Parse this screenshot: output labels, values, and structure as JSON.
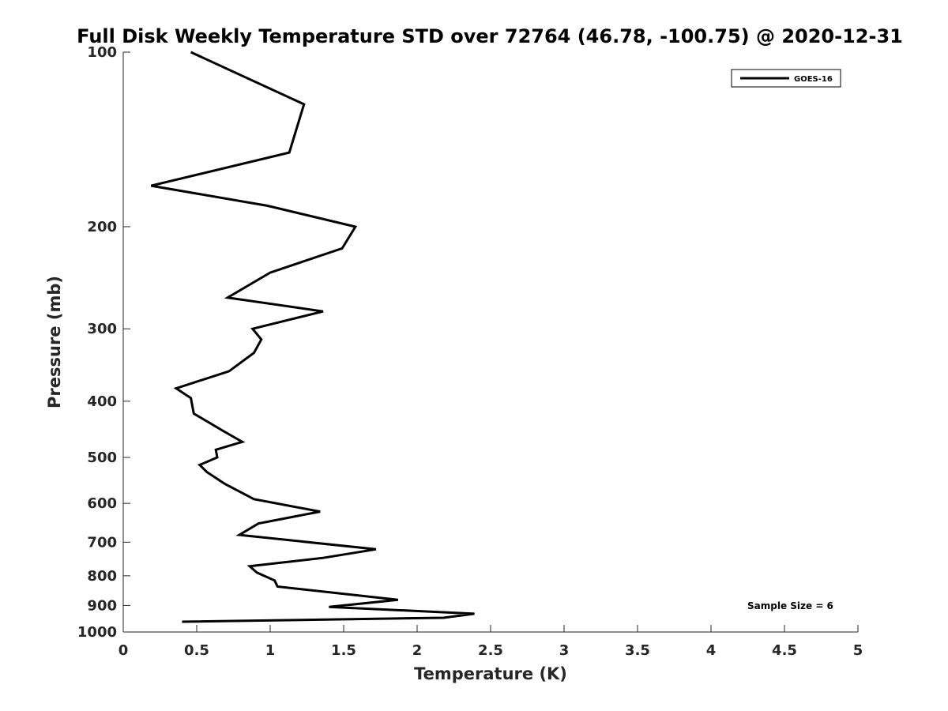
{
  "chart_data": {
    "type": "line",
    "title": "Full Disk Weekly Temperature STD over 72764 (46.78, -100.75) @ 2020-12-31",
    "xlabel": "Temperature (K)",
    "ylabel": "Pressure (mb)",
    "xlim": [
      0,
      5
    ],
    "ylim": [
      100,
      1000
    ],
    "y_scale": "log",
    "y_reversed": true,
    "x_ticks": [
      "0",
      "0.5",
      "1",
      "1.5",
      "2",
      "2.5",
      "3",
      "3.5",
      "4",
      "4.5",
      "5"
    ],
    "y_ticks": [
      "100",
      "200",
      "300",
      "400",
      "500",
      "600",
      "700",
      "800",
      "900",
      "1000"
    ],
    "grid": false,
    "legend_position": "top-right",
    "series": [
      {
        "name": "GOES-16",
        "color": "#000000",
        "x": [
          0.46,
          1.23,
          1.13,
          0.19,
          0.98,
          1.58,
          1.49,
          1.0,
          0.71,
          1.36,
          0.88,
          0.94,
          0.89,
          0.72,
          0.36,
          0.46,
          0.48,
          0.68,
          0.81,
          0.63,
          0.64,
          0.52,
          0.57,
          0.69,
          0.89,
          1.34,
          0.92,
          0.79,
          1.72,
          1.36,
          0.86,
          0.91,
          1.03,
          1.05,
          1.87,
          1.4,
          2.39,
          2.18,
          0.4
        ],
        "y": [
          100,
          123,
          149,
          170,
          184,
          200,
          218,
          240,
          265,
          280,
          300,
          313,
          330,
          355,
          380,
          395,
          420,
          450,
          470,
          485,
          500,
          515,
          530,
          555,
          590,
          620,
          650,
          680,
          720,
          745,
          770,
          790,
          815,
          835,
          880,
          905,
          930,
          945,
          960
        ]
      }
    ],
    "annotations": [
      "Sample Size = 6"
    ]
  }
}
